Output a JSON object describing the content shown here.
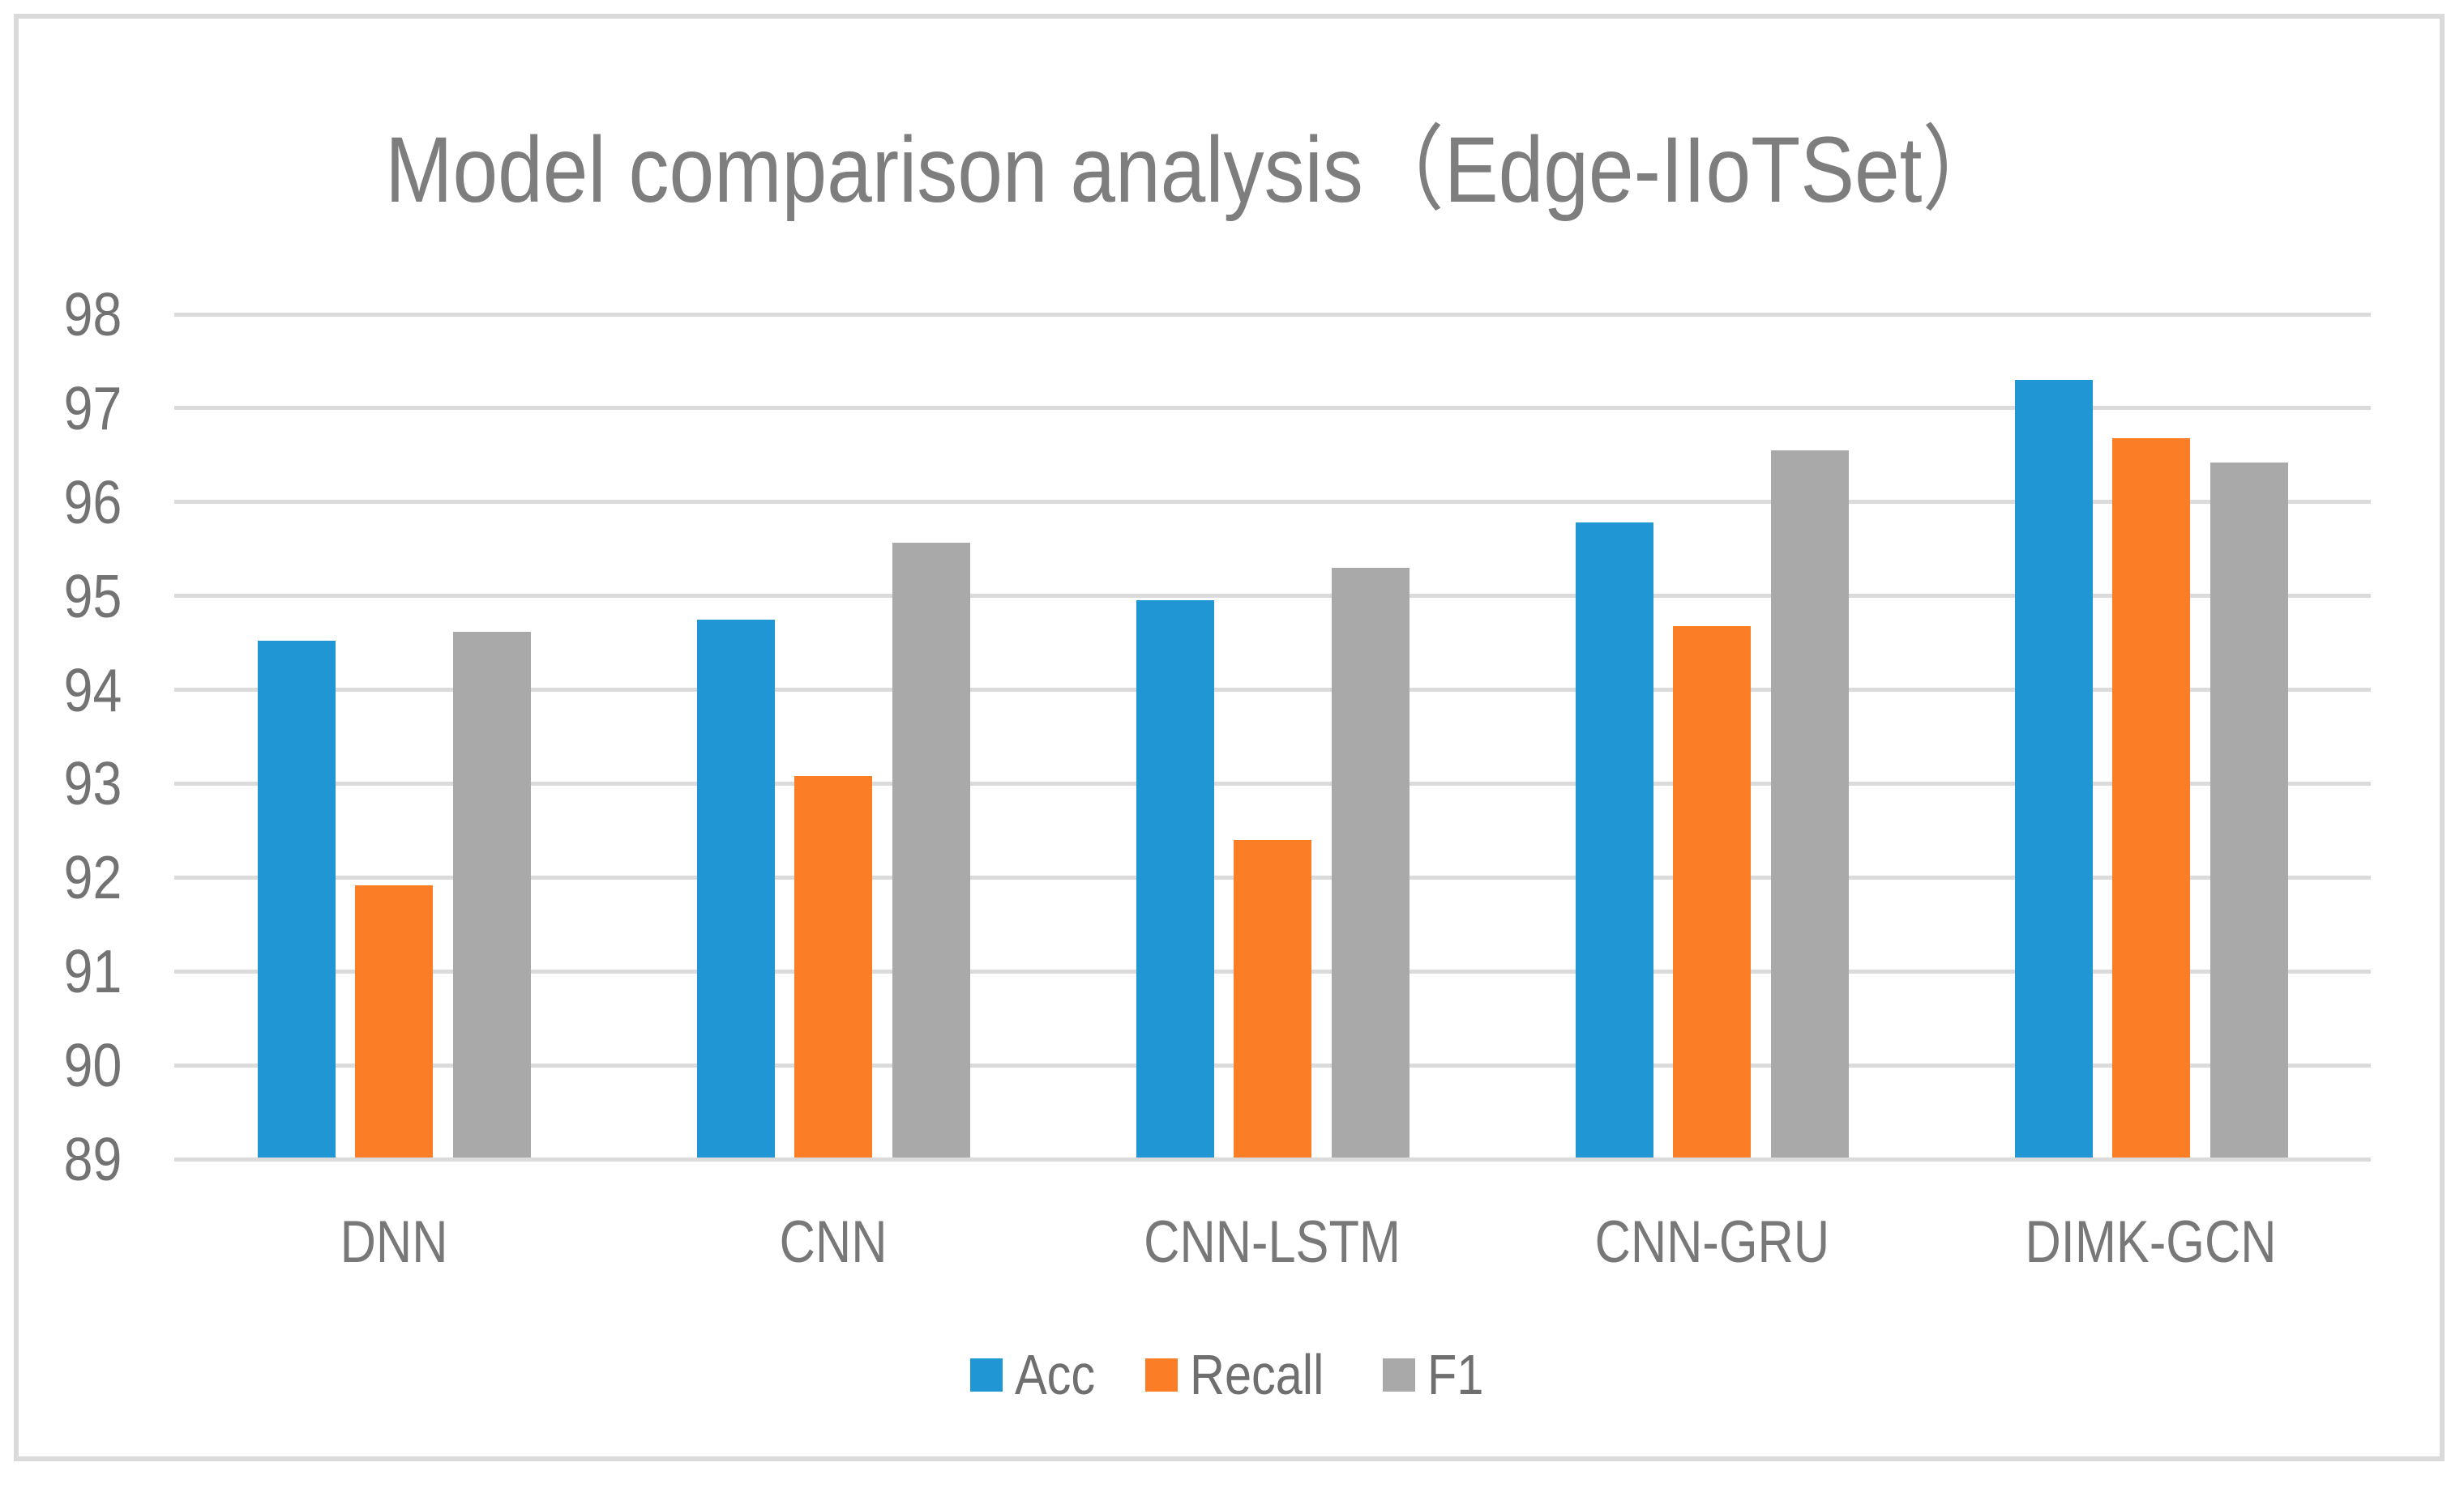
{
  "chart_data": {
    "type": "bar",
    "title": "Model comparison analysis（Edge-IIoTSet）",
    "categories": [
      "DNN",
      "CNN",
      "CNN-LSTM",
      "CNN-GRU",
      "DIMK-GCN"
    ],
    "series": [
      {
        "name": "Acc",
        "color": "#2196D5",
        "values": [
          94.52,
          94.75,
          94.95,
          95.78,
          97.3
        ]
      },
      {
        "name": "Recall",
        "color": "#FB7D26",
        "values": [
          91.92,
          93.08,
          92.4,
          94.68,
          96.68
        ]
      },
      {
        "name": "F1",
        "color": "#A9A9A9",
        "values": [
          94.62,
          95.57,
          95.3,
          96.55,
          96.42
        ]
      }
    ],
    "xlabel": "",
    "ylabel": "",
    "ylim": [
      89,
      98
    ],
    "yticks": [
      89,
      90,
      91,
      92,
      93,
      94,
      95,
      96,
      97,
      98
    ],
    "grid": true,
    "legend_position": "bottom",
    "colors": {
      "gridline": "#DBDBDB",
      "frame_border": "#DADADA",
      "title_text": "#7E7E7E",
      "tick_text": "#737373",
      "category_text": "#787878",
      "legend_text": "#6F6F6F",
      "background": "#FFFFFF"
    }
  }
}
